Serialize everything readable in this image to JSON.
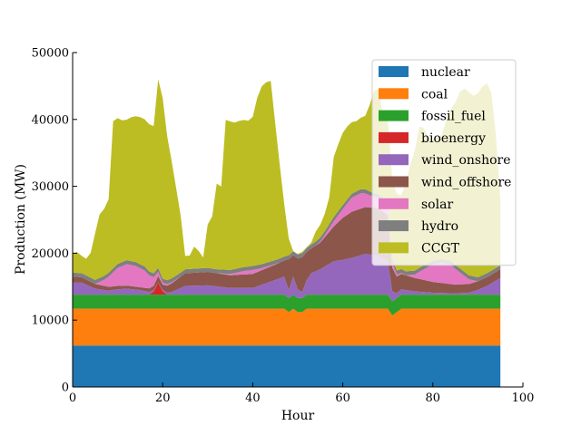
{
  "chart_data": {
    "type": "area",
    "stacked": true,
    "xlabel": "Hour",
    "ylabel": "Production (MW)",
    "xlim": [
      0,
      100
    ],
    "ylim": [
      0,
      50000
    ],
    "x_ticks": [
      0,
      20,
      40,
      60,
      80,
      100
    ],
    "y_ticks": [
      0,
      10000,
      20000,
      30000,
      40000,
      50000
    ],
    "grid": false,
    "legend_position": "top-right",
    "series": [
      {
        "name": "nuclear",
        "color": "#1f77b4",
        "x": [
          0,
          95
        ],
        "values": [
          6200,
          6200
        ]
      },
      {
        "name": "coal",
        "color": "#ff7f0e",
        "x": [
          0,
          47,
          48,
          49,
          50,
          51,
          52,
          53,
          70,
          71,
          72,
          73,
          95
        ],
        "values": [
          5500,
          5500,
          5000,
          5500,
          5000,
          5000,
          5500,
          5500,
          5500,
          4500,
          5000,
          5500,
          5500
        ]
      },
      {
        "name": "fossil_fuel",
        "color": "#2ca02c",
        "x": [
          0,
          95
        ],
        "values": [
          2100,
          2100
        ]
      },
      {
        "name": "bioenergy",
        "color": "#d62728",
        "x": [
          0,
          17,
          18,
          19,
          20,
          21,
          95
        ],
        "values": [
          0,
          0,
          500,
          1800,
          500,
          0,
          0
        ]
      },
      {
        "name": "wind_onshore",
        "color": "#9467bd",
        "x": [
          0,
          2,
          5,
          8,
          10,
          12,
          15,
          17,
          18,
          19,
          20,
          22,
          25,
          30,
          35,
          40,
          45,
          47,
          48,
          49,
          50,
          51,
          52,
          53,
          55,
          58,
          60,
          62,
          65,
          68,
          70,
          71,
          72,
          73,
          76,
          80,
          85,
          88,
          90,
          92,
          95
        ],
        "values": [
          1800,
          1800,
          900,
          600,
          800,
          900,
          700,
          400,
          200,
          0,
          200,
          400,
          1300,
          1400,
          1000,
          1000,
          2200,
          2700,
          1200,
          2700,
          1300,
          900,
          2200,
          3200,
          3800,
          5000,
          5200,
          5500,
          6100,
          5800,
          5000,
          1500,
          700,
          800,
          500,
          300,
          200,
          300,
          700,
          1300,
          2500
        ]
      },
      {
        "name": "wind_offshore",
        "color": "#8c564b",
        "x": [
          0,
          5,
          10,
          15,
          18,
          19,
          20,
          22,
          25,
          30,
          35,
          40,
          45,
          47,
          48,
          49,
          50,
          51,
          52,
          53,
          55,
          58,
          60,
          62,
          65,
          68,
          70,
          71,
          72,
          73,
          76,
          80,
          85,
          90,
          95
        ],
        "values": [
          900,
          700,
          500,
          400,
          600,
          1000,
          800,
          1300,
          1900,
          2000,
          1900,
          2100,
          2300,
          2400,
          4600,
          3200,
          4600,
          5200,
          4200,
          3700,
          4000,
          5200,
          6300,
          6900,
          7000,
          7100,
          6900,
          3500,
          2500,
          2300,
          2000,
          1600,
          1300,
          1300,
          1300
        ]
      },
      {
        "name": "solar",
        "color": "#e377c2",
        "x": [
          0,
          5,
          7,
          8,
          10,
          12,
          14,
          16,
          18,
          19,
          20,
          24,
          28,
          32,
          35,
          38,
          40,
          42,
          46,
          50,
          54,
          56,
          58,
          60,
          62,
          64,
          66,
          68,
          70,
          72,
          74,
          76,
          78,
          80,
          82,
          84,
          86,
          88,
          90,
          95
        ],
        "values": [
          0,
          0,
          900,
          1500,
          2700,
          3200,
          3100,
          2600,
          1300,
          600,
          300,
          0,
          0,
          0,
          200,
          500,
          600,
          300,
          0,
          0,
          0,
          300,
          800,
          1300,
          2100,
          2300,
          1800,
          1500,
          1300,
          300,
          0,
          500,
          1600,
          2600,
          3000,
          2900,
          1800,
          700,
          0,
          0
        ]
      },
      {
        "name": "hydro",
        "color": "#7f7f7f",
        "x": [
          0,
          95
        ],
        "values": [
          600,
          600
        ]
      },
      {
        "name": "CCGT",
        "color": "#bcbd22",
        "x": [
          0,
          1,
          2,
          3,
          4,
          5,
          6,
          7,
          8,
          9,
          10,
          11,
          12,
          13,
          14,
          15,
          16,
          17,
          18,
          19,
          20,
          21,
          22,
          23,
          24,
          25,
          26,
          27,
          28,
          29,
          30,
          31,
          32,
          33,
          34,
          35,
          36,
          37,
          38,
          39,
          40,
          41,
          42,
          43,
          44,
          45,
          46,
          47,
          48,
          49,
          50,
          51,
          52,
          53,
          54,
          55,
          56,
          57,
          58,
          59,
          60,
          61,
          62,
          63,
          64,
          65,
          66,
          67,
          68,
          69,
          70,
          71,
          72,
          73,
          74,
          75,
          76,
          77,
          78,
          79,
          80,
          81,
          82,
          83,
          84,
          85,
          86,
          87,
          88,
          89,
          90,
          91,
          92,
          93,
          94,
          95
        ],
        "values": [
          2900,
          3100,
          2600,
          2500,
          3700,
          7000,
          9500,
          10000,
          11000,
          22000,
          21800,
          21200,
          21000,
          21500,
          21800,
          22000,
          22000,
          22000,
          22000,
          28200,
          27000,
          21500,
          17500,
          13000,
          8500,
          2000,
          2000,
          3300,
          2600,
          1600,
          6500,
          7800,
          12800,
          12400,
          22400,
          22200,
          21900,
          22000,
          22000,
          21800,
          22300,
          25000,
          26600,
          27000,
          27000,
          20400,
          14000,
          7800,
          2500,
          0,
          100,
          200,
          100,
          300,
          1500,
          1900,
          2600,
          4000,
          9000,
          10000,
          10800,
          10900,
          10700,
          10500,
          10700,
          11000,
          13000,
          15300,
          15700,
          11800,
          12500,
          11600,
          11500,
          11000,
          13100,
          16000,
          18000,
          21100,
          20500,
          18800,
          18000,
          18300,
          18600,
          20900,
          22700,
          24300,
          26400,
          27400,
          27400,
          27000,
          27500,
          28200,
          28400,
          26600,
          19900,
          9800
        ]
      }
    ]
  }
}
